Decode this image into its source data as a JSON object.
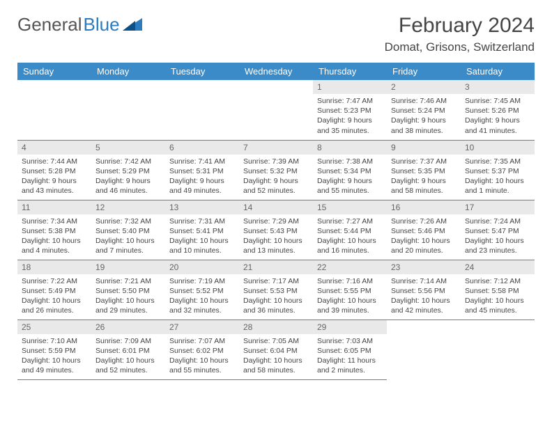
{
  "brand": {
    "part1": "General",
    "part2": "Blue"
  },
  "title": "February 2024",
  "location": "Domat, Grisons, Switzerland",
  "colors": {
    "header_bg": "#3b8bc9",
    "header_text": "#ffffff",
    "daynum_bg": "#e9e9e9",
    "rule": "#3b8bc9",
    "body_text": "#444444"
  },
  "dow": [
    "Sunday",
    "Monday",
    "Tuesday",
    "Wednesday",
    "Thursday",
    "Friday",
    "Saturday"
  ],
  "weeks": [
    [
      null,
      null,
      null,
      null,
      {
        "n": "1",
        "sr": "7:47 AM",
        "ss": "5:23 PM",
        "dl": "9 hours and 35 minutes."
      },
      {
        "n": "2",
        "sr": "7:46 AM",
        "ss": "5:24 PM",
        "dl": "9 hours and 38 minutes."
      },
      {
        "n": "3",
        "sr": "7:45 AM",
        "ss": "5:26 PM",
        "dl": "9 hours and 41 minutes."
      }
    ],
    [
      {
        "n": "4",
        "sr": "7:44 AM",
        "ss": "5:28 PM",
        "dl": "9 hours and 43 minutes."
      },
      {
        "n": "5",
        "sr": "7:42 AM",
        "ss": "5:29 PM",
        "dl": "9 hours and 46 minutes."
      },
      {
        "n": "6",
        "sr": "7:41 AM",
        "ss": "5:31 PM",
        "dl": "9 hours and 49 minutes."
      },
      {
        "n": "7",
        "sr": "7:39 AM",
        "ss": "5:32 PM",
        "dl": "9 hours and 52 minutes."
      },
      {
        "n": "8",
        "sr": "7:38 AM",
        "ss": "5:34 PM",
        "dl": "9 hours and 55 minutes."
      },
      {
        "n": "9",
        "sr": "7:37 AM",
        "ss": "5:35 PM",
        "dl": "9 hours and 58 minutes."
      },
      {
        "n": "10",
        "sr": "7:35 AM",
        "ss": "5:37 PM",
        "dl": "10 hours and 1 minute."
      }
    ],
    [
      {
        "n": "11",
        "sr": "7:34 AM",
        "ss": "5:38 PM",
        "dl": "10 hours and 4 minutes."
      },
      {
        "n": "12",
        "sr": "7:32 AM",
        "ss": "5:40 PM",
        "dl": "10 hours and 7 minutes."
      },
      {
        "n": "13",
        "sr": "7:31 AM",
        "ss": "5:41 PM",
        "dl": "10 hours and 10 minutes."
      },
      {
        "n": "14",
        "sr": "7:29 AM",
        "ss": "5:43 PM",
        "dl": "10 hours and 13 minutes."
      },
      {
        "n": "15",
        "sr": "7:27 AM",
        "ss": "5:44 PM",
        "dl": "10 hours and 16 minutes."
      },
      {
        "n": "16",
        "sr": "7:26 AM",
        "ss": "5:46 PM",
        "dl": "10 hours and 20 minutes."
      },
      {
        "n": "17",
        "sr": "7:24 AM",
        "ss": "5:47 PM",
        "dl": "10 hours and 23 minutes."
      }
    ],
    [
      {
        "n": "18",
        "sr": "7:22 AM",
        "ss": "5:49 PM",
        "dl": "10 hours and 26 minutes."
      },
      {
        "n": "19",
        "sr": "7:21 AM",
        "ss": "5:50 PM",
        "dl": "10 hours and 29 minutes."
      },
      {
        "n": "20",
        "sr": "7:19 AM",
        "ss": "5:52 PM",
        "dl": "10 hours and 32 minutes."
      },
      {
        "n": "21",
        "sr": "7:17 AM",
        "ss": "5:53 PM",
        "dl": "10 hours and 36 minutes."
      },
      {
        "n": "22",
        "sr": "7:16 AM",
        "ss": "5:55 PM",
        "dl": "10 hours and 39 minutes."
      },
      {
        "n": "23",
        "sr": "7:14 AM",
        "ss": "5:56 PM",
        "dl": "10 hours and 42 minutes."
      },
      {
        "n": "24",
        "sr": "7:12 AM",
        "ss": "5:58 PM",
        "dl": "10 hours and 45 minutes."
      }
    ],
    [
      {
        "n": "25",
        "sr": "7:10 AM",
        "ss": "5:59 PM",
        "dl": "10 hours and 49 minutes."
      },
      {
        "n": "26",
        "sr": "7:09 AM",
        "ss": "6:01 PM",
        "dl": "10 hours and 52 minutes."
      },
      {
        "n": "27",
        "sr": "7:07 AM",
        "ss": "6:02 PM",
        "dl": "10 hours and 55 minutes."
      },
      {
        "n": "28",
        "sr": "7:05 AM",
        "ss": "6:04 PM",
        "dl": "10 hours and 58 minutes."
      },
      {
        "n": "29",
        "sr": "7:03 AM",
        "ss": "6:05 PM",
        "dl": "11 hours and 2 minutes."
      },
      null,
      null
    ]
  ],
  "labels": {
    "sunrise": "Sunrise:",
    "sunset": "Sunset:",
    "daylight": "Daylight:"
  }
}
